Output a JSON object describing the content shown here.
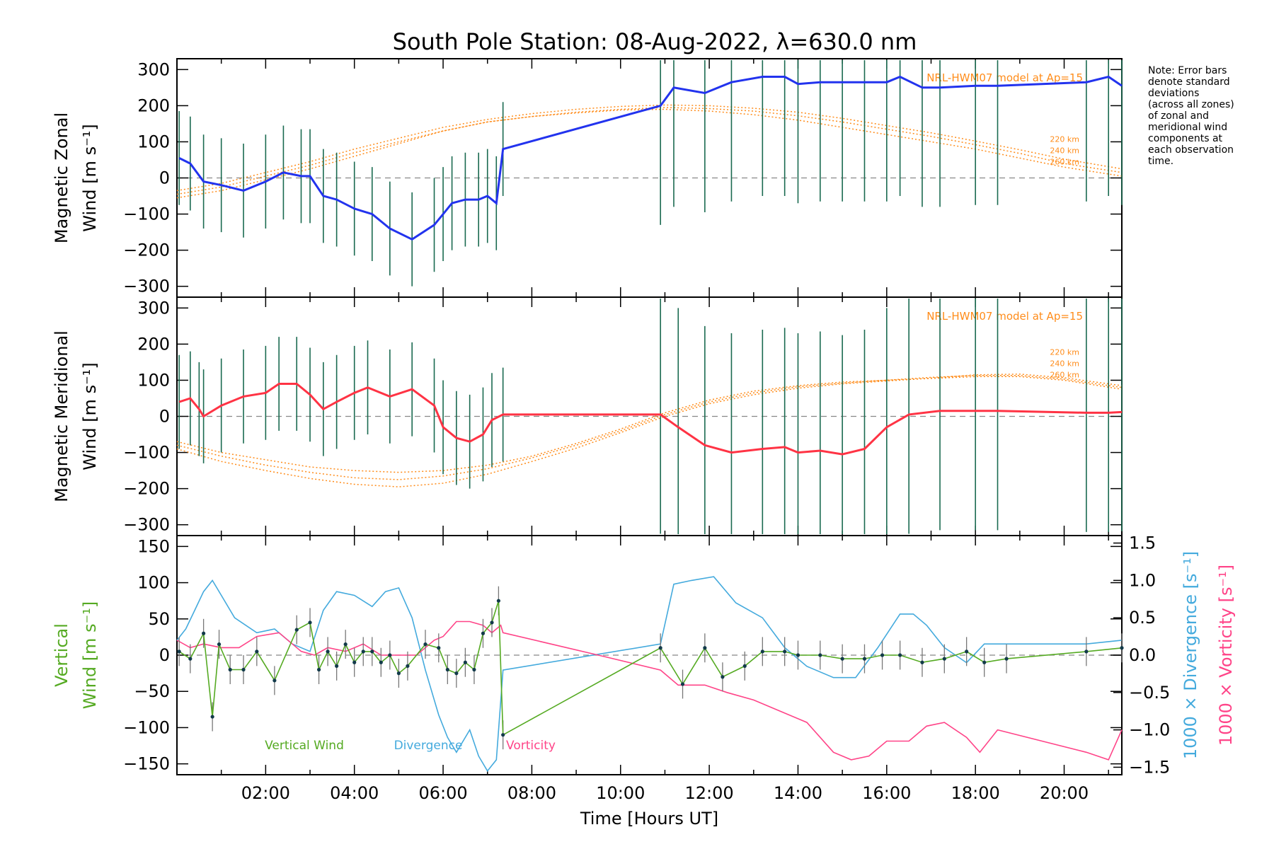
{
  "title": "South Pole Station: 08-Aug-2022, λ=630.0 nm",
  "note": [
    "Note: Error bars",
    "denote standard",
    "deviations",
    "(across all zones)",
    "of zonal and",
    "meridional wind",
    "components at",
    "each observation",
    "time."
  ],
  "colors": {
    "zonal": "#2233ee",
    "meridional": "#ff3344",
    "vertical": "#55aa22",
    "divergence": "#44aadd",
    "vorticity": "#ff4488",
    "model": "#ff8c1a",
    "errbar": "#1a6a50"
  },
  "chart_data": [
    {
      "type": "line",
      "name": "zonal",
      "ylabel_line1": "Magnetic Zonal",
      "ylabel_line2": "Wind [m s⁻¹]",
      "ylim": [
        -330,
        330
      ],
      "yticks": [
        300,
        200,
        100,
        0,
        -100,
        -200,
        -300
      ],
      "model_label": "NRL-HWM07 model at Ap=15",
      "altitudes": [
        "220 km",
        "240 km",
        "260 km"
      ],
      "series": [
        {
          "name": "Magnetic Zonal Wind",
          "x": [
            0.05,
            0.3,
            0.6,
            1.0,
            1.5,
            2.0,
            2.4,
            2.8,
            3.0,
            3.3,
            3.6,
            4.0,
            4.4,
            4.8,
            5.3,
            5.8,
            6.0,
            6.2,
            6.5,
            6.8,
            7.0,
            7.2,
            7.35,
            10.9,
            11.2,
            11.9,
            12.5,
            13.2,
            13.7,
            14.0,
            14.5,
            15.0,
            15.5,
            16.0,
            16.3,
            16.8,
            17.2,
            18.0,
            18.5,
            20.5,
            21.0,
            21.3
          ],
          "values": [
            55,
            40,
            -10,
            -20,
            -35,
            -10,
            15,
            5,
            5,
            -50,
            -60,
            -85,
            -100,
            -140,
            -170,
            -130,
            -100,
            -70,
            -60,
            -60,
            -50,
            -70,
            80,
            200,
            250,
            235,
            265,
            280,
            280,
            260,
            265,
            265,
            265,
            265,
            280,
            250,
            250,
            255,
            255,
            265,
            280,
            255
          ]
        }
      ],
      "model_curves": [
        {
          "altitude": "220 km",
          "x": [
            0,
            1,
            2,
            3,
            4,
            5,
            6,
            7,
            8,
            9,
            10,
            11,
            12,
            13,
            14,
            15,
            16,
            17,
            18,
            19,
            20,
            21.3
          ],
          "values": [
            -55,
            -35,
            -5,
            25,
            60,
            95,
            130,
            155,
            170,
            180,
            188,
            190,
            185,
            175,
            160,
            140,
            120,
            100,
            80,
            55,
            30,
            5
          ]
        },
        {
          "altitude": "240 km",
          "x": [
            0,
            1,
            2,
            3,
            4,
            5,
            6,
            7,
            8,
            9,
            10,
            11,
            12,
            13,
            14,
            15,
            16,
            17,
            18,
            19,
            20,
            21.3
          ],
          "values": [
            -45,
            -25,
            5,
            35,
            70,
            100,
            130,
            155,
            170,
            182,
            190,
            195,
            192,
            185,
            172,
            155,
            135,
            115,
            92,
            68,
            40,
            15
          ]
        },
        {
          "altitude": "260 km",
          "x": [
            0,
            1,
            2,
            3,
            4,
            5,
            6,
            7,
            8,
            9,
            10,
            11,
            12,
            13,
            14,
            15,
            16,
            17,
            18,
            19,
            20,
            21.3
          ],
          "values": [
            -35,
            -15,
            15,
            45,
            80,
            110,
            140,
            162,
            178,
            190,
            198,
            202,
            200,
            193,
            182,
            165,
            145,
            125,
            102,
            78,
            52,
            25
          ]
        }
      ]
    },
    {
      "type": "line",
      "name": "meridional",
      "ylabel_line1": "Magnetic Meridional",
      "ylabel_line2": "Wind [m s⁻¹]",
      "ylim": [
        -330,
        330
      ],
      "yticks": [
        300,
        200,
        100,
        0,
        -100,
        -200,
        -300
      ],
      "model_label": "NRL-HWM07 model at Ap=15",
      "altitudes": [
        "220 km",
        "240 km",
        "260 km"
      ],
      "series": [
        {
          "name": "Magnetic Meridional Wind",
          "x": [
            0.05,
            0.3,
            0.5,
            0.6,
            1.0,
            1.5,
            2.0,
            2.3,
            2.7,
            3.0,
            3.3,
            3.6,
            4.0,
            4.3,
            4.8,
            5.3,
            5.8,
            6.0,
            6.3,
            6.6,
            6.9,
            7.1,
            7.35,
            10.9,
            11.3,
            11.9,
            12.5,
            13.2,
            13.7,
            14.0,
            14.5,
            15.0,
            15.5,
            16.0,
            16.5,
            17.2,
            18.0,
            18.5,
            20.5,
            21.0,
            21.3
          ],
          "values": [
            40,
            50,
            20,
            0,
            30,
            55,
            65,
            90,
            90,
            60,
            20,
            40,
            65,
            80,
            55,
            75,
            30,
            -30,
            -60,
            -70,
            -50,
            -10,
            5,
            5,
            -30,
            -80,
            -100,
            -90,
            -85,
            -100,
            -95,
            -105,
            -90,
            -30,
            5,
            15,
            15,
            15,
            10,
            10,
            12
          ]
        }
      ],
      "model_curves": [
        {
          "altitude": "220 km",
          "x": [
            0,
            1,
            2,
            3,
            4,
            5,
            6,
            7,
            8,
            9,
            10,
            11,
            12,
            13,
            14,
            15,
            16,
            17,
            18,
            19,
            20,
            21.3
          ],
          "values": [
            -70,
            -100,
            -120,
            -140,
            -150,
            -155,
            -150,
            -135,
            -110,
            -75,
            -35,
            10,
            45,
            70,
            85,
            95,
            100,
            105,
            110,
            110,
            100,
            75
          ]
        },
        {
          "altitude": "240 km",
          "x": [
            0,
            1,
            2,
            3,
            4,
            5,
            6,
            7,
            8,
            9,
            10,
            11,
            12,
            13,
            14,
            15,
            16,
            17,
            18,
            19,
            20,
            21.3
          ],
          "values": [
            -80,
            -110,
            -135,
            -155,
            -170,
            -175,
            -165,
            -145,
            -115,
            -80,
            -40,
            5,
            40,
            65,
            82,
            92,
            100,
            108,
            113,
            113,
            103,
            80
          ]
        },
        {
          "altitude": "260 km",
          "x": [
            0,
            1,
            2,
            3,
            4,
            5,
            6,
            7,
            8,
            9,
            10,
            11,
            12,
            13,
            14,
            15,
            16,
            17,
            18,
            19,
            20,
            21.3
          ],
          "values": [
            -90,
            -125,
            -150,
            -172,
            -188,
            -195,
            -185,
            -160,
            -125,
            -88,
            -45,
            0,
            35,
            60,
            78,
            90,
            98,
            106,
            115,
            117,
            107,
            85
          ]
        }
      ]
    },
    {
      "type": "line",
      "name": "vertical",
      "ylabel_line1": "Vertical",
      "ylabel_line2": "Wind [m s⁻¹]",
      "ylim": [
        -165,
        165
      ],
      "yticks": [
        150,
        100,
        50,
        0,
        -50,
        -100,
        -150
      ],
      "xlabel": "Time [Hours UT]",
      "xticks": [
        "02:00",
        "04:00",
        "06:00",
        "08:00",
        "10:00",
        "12:00",
        "14:00",
        "16:00",
        "18:00",
        "20:00"
      ],
      "xrange": [
        0,
        21.3
      ],
      "right_ylabel_div": "1000 × Divergence [s⁻¹]",
      "right_ylabel_vort": "1000 × Vorticity [s⁻¹]",
      "right_yrange": [
        -1.6,
        1.6
      ],
      "right_ticks": [
        1.5,
        1.0,
        0.5,
        0.0,
        -0.5,
        -1.0,
        -1.5
      ],
      "right_tick_labels": [
        "1.5",
        "1.0",
        "0.5",
        "0.0",
        "−0.5",
        "−1.0",
        "−1.5"
      ],
      "legend": [
        {
          "label": "Vertical Wind",
          "key": "vertical"
        },
        {
          "label": "Divergence",
          "key": "divergence"
        },
        {
          "label": "Vorticity",
          "key": "vorticity"
        }
      ],
      "series": [
        {
          "name": "Vertical Wind",
          "axis": "left",
          "x": [
            0.05,
            0.3,
            0.6,
            0.8,
            0.95,
            1.2,
            1.5,
            1.8,
            2.2,
            2.7,
            3.0,
            3.2,
            3.4,
            3.6,
            3.8,
            4.0,
            4.2,
            4.4,
            4.6,
            4.8,
            5.0,
            5.2,
            5.6,
            5.9,
            6.1,
            6.3,
            6.5,
            6.7,
            6.9,
            7.1,
            7.25,
            7.35,
            10.9,
            11.4,
            11.9,
            12.3,
            12.8,
            13.2,
            13.7,
            14.0,
            14.5,
            15.0,
            15.5,
            15.9,
            16.3,
            16.8,
            17.3,
            17.8,
            18.2,
            18.7,
            20.5,
            21.3
          ],
          "values": [
            5,
            -5,
            30,
            -85,
            15,
            -20,
            -20,
            5,
            -35,
            35,
            45,
            -20,
            5,
            -15,
            15,
            -10,
            5,
            5,
            -10,
            0,
            -25,
            -15,
            15,
            10,
            -20,
            -25,
            -10,
            -20,
            30,
            45,
            75,
            -110,
            10,
            -40,
            10,
            -30,
            -15,
            5,
            5,
            0,
            0,
            -5,
            -5,
            0,
            0,
            -10,
            -5,
            5,
            -10,
            -5,
            5,
            10
          ]
        },
        {
          "name": "Divergence",
          "axis": "right",
          "x": [
            0.0,
            0.2,
            0.4,
            0.6,
            0.8,
            1.0,
            1.3,
            1.8,
            2.2,
            2.6,
            3.0,
            3.3,
            3.6,
            4.0,
            4.4,
            4.7,
            5.0,
            5.3,
            5.6,
            5.9,
            6.1,
            6.3,
            6.6,
            6.8,
            7.0,
            7.2,
            7.35,
            10.9,
            11.2,
            11.6,
            12.1,
            12.6,
            13.2,
            13.7,
            14.2,
            14.8,
            15.3,
            15.8,
            16.3,
            16.6,
            16.9,
            17.3,
            17.8,
            18.2,
            18.7,
            20.5,
            21.3
          ],
          "values": [
            0.2,
            0.35,
            0.6,
            0.85,
            1.0,
            0.8,
            0.5,
            0.3,
            0.35,
            0.15,
            0.05,
            0.6,
            0.85,
            0.8,
            0.65,
            0.85,
            0.9,
            0.5,
            -0.2,
            -0.8,
            -1.1,
            -1.3,
            -1.0,
            -1.35,
            -1.55,
            -1.4,
            -0.2,
            0.15,
            0.95,
            1.0,
            1.05,
            0.7,
            0.5,
            0.1,
            -0.15,
            -0.3,
            -0.3,
            0.1,
            0.55,
            0.55,
            0.4,
            0.1,
            -0.1,
            0.15,
            0.15,
            0.15,
            0.2
          ]
        },
        {
          "name": "Vorticity",
          "axis": "right",
          "x": [
            0.0,
            0.3,
            0.6,
            1.0,
            1.4,
            1.8,
            2.3,
            2.8,
            3.1,
            3.4,
            3.8,
            4.2,
            4.6,
            5.0,
            5.4,
            5.8,
            6.0,
            6.3,
            6.6,
            6.9,
            7.1,
            7.3,
            7.35,
            9.5,
            10.9,
            11.3,
            11.9,
            12.4,
            13.0,
            13.6,
            14.2,
            14.8,
            15.2,
            15.6,
            16.0,
            16.5,
            16.9,
            17.3,
            17.8,
            18.1,
            18.5,
            20.5,
            21.0,
            21.3
          ],
          "values": [
            0.2,
            0.1,
            0.15,
            0.1,
            0.1,
            0.25,
            0.3,
            0.05,
            0.0,
            0.1,
            0.05,
            0.15,
            0.0,
            0.0,
            0.0,
            0.2,
            0.25,
            0.45,
            0.45,
            0.4,
            0.3,
            0.4,
            0.3,
            0.0,
            -0.2,
            -0.4,
            -0.4,
            -0.5,
            -0.6,
            -0.75,
            -0.9,
            -1.3,
            -1.4,
            -1.35,
            -1.15,
            -1.15,
            -0.95,
            -0.9,
            -1.1,
            -1.3,
            -1.0,
            -1.3,
            -1.4,
            -1.0
          ]
        }
      ]
    }
  ]
}
